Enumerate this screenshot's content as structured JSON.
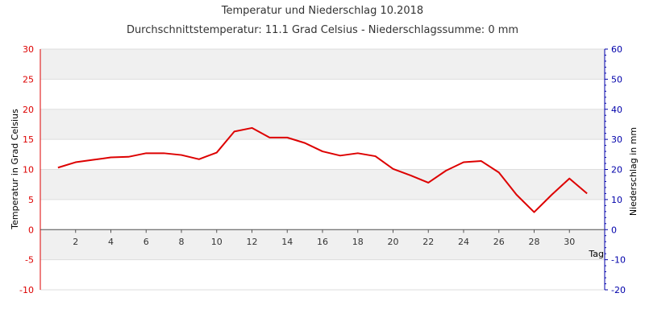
{
  "chart_data": {
    "type": "line",
    "title": "Temperatur und Niederschlag 10.2018",
    "subtitle": "Durchschnittstemperatur: 11.1 Grad Celsius   -   Niederschlagssumme: 0 mm",
    "xlabel": "Tag",
    "ylabel_left": "Temperatur in Grad Celsius",
    "ylabel_right": "Niederschlag in mm",
    "xlim": [
      0,
      32
    ],
    "ylim_left": [
      -10,
      30
    ],
    "ylim_right": [
      -20,
      60
    ],
    "x_ticks": [
      2,
      4,
      6,
      8,
      10,
      12,
      14,
      16,
      18,
      20,
      22,
      24,
      26,
      28,
      30
    ],
    "y_left_ticks": [
      -10,
      -5,
      0,
      5,
      10,
      15,
      20,
      25,
      30
    ],
    "y_right_ticks": [
      -20,
      -10,
      0,
      10,
      20,
      30,
      40,
      50,
      60
    ],
    "grid": true,
    "colors": {
      "temperature": "#dd0000",
      "precipitation_axis": "#0000aa",
      "band_light": "#f0f0f0",
      "band_white": "#ffffff",
      "grid": "#dddddd"
    },
    "series": [
      {
        "x": [
          1,
          2,
          3,
          4,
          5,
          6,
          7,
          8,
          9,
          10,
          11,
          12,
          13,
          14,
          15,
          16,
          17,
          18,
          19,
          20,
          21,
          22,
          23,
          24,
          25,
          26,
          27,
          28,
          29,
          30,
          31
        ],
        "values": [
          10.3,
          11.2,
          11.6,
          12.0,
          12.1,
          12.7,
          12.7,
          12.4,
          11.7,
          12.8,
          16.3,
          16.9,
          15.3,
          15.3,
          14.4,
          13.0,
          12.3,
          12.7,
          12.2,
          10.1,
          9.0,
          7.8,
          9.8,
          11.2,
          11.4,
          9.5,
          5.8,
          2.9,
          5.8,
          8.5,
          6.0
        ]
      }
    ]
  }
}
